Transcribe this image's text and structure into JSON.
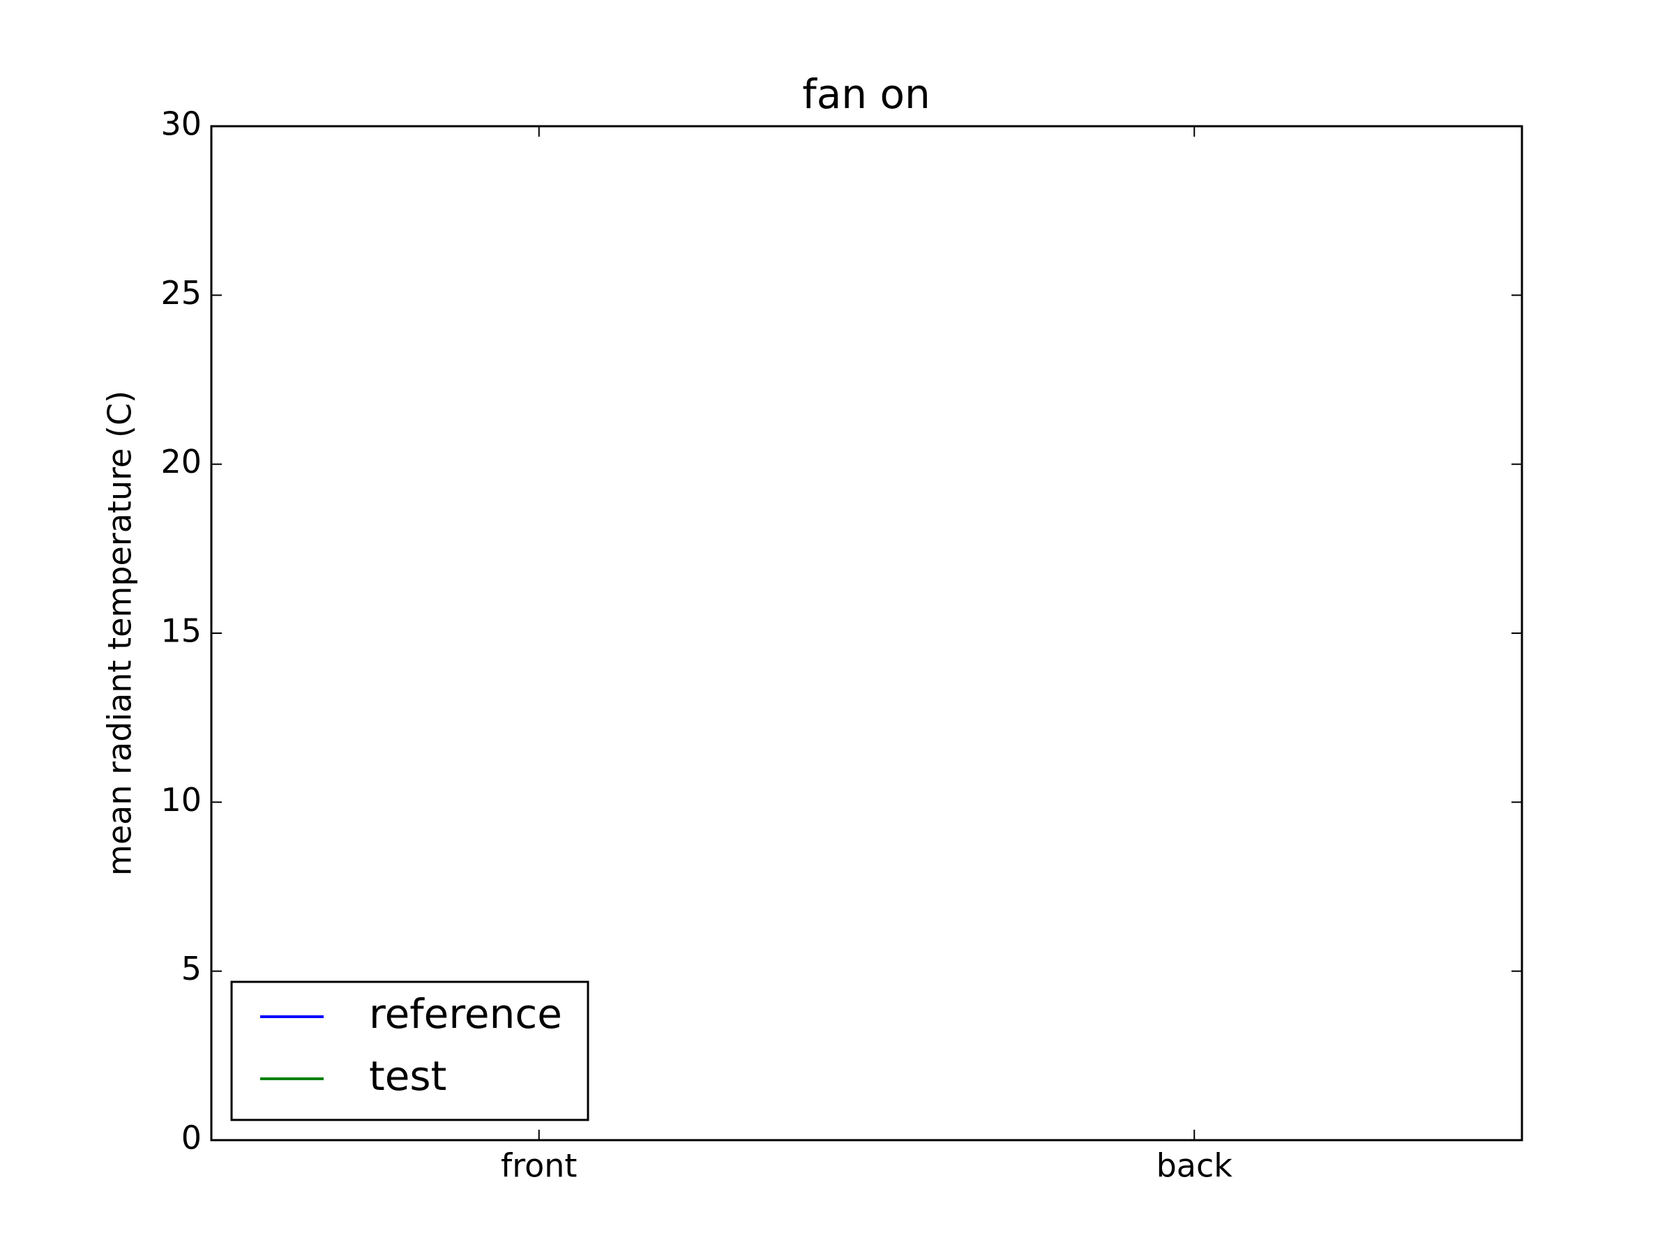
{
  "chart_data": {
    "type": "line",
    "title": "fan on",
    "ylabel": "mean radiant temperature (C)",
    "categories": [
      "front",
      "back"
    ],
    "series": [
      {
        "name": "reference",
        "color": "#0000ff",
        "values": [
          null,
          null
        ]
      },
      {
        "name": "test",
        "color": "#008000",
        "values": [
          null,
          null
        ]
      }
    ],
    "ylim": [
      0,
      30
    ],
    "yticks": [
      0,
      5,
      10,
      15,
      20,
      25,
      30
    ],
    "grid": false,
    "legend": "lower left"
  }
}
